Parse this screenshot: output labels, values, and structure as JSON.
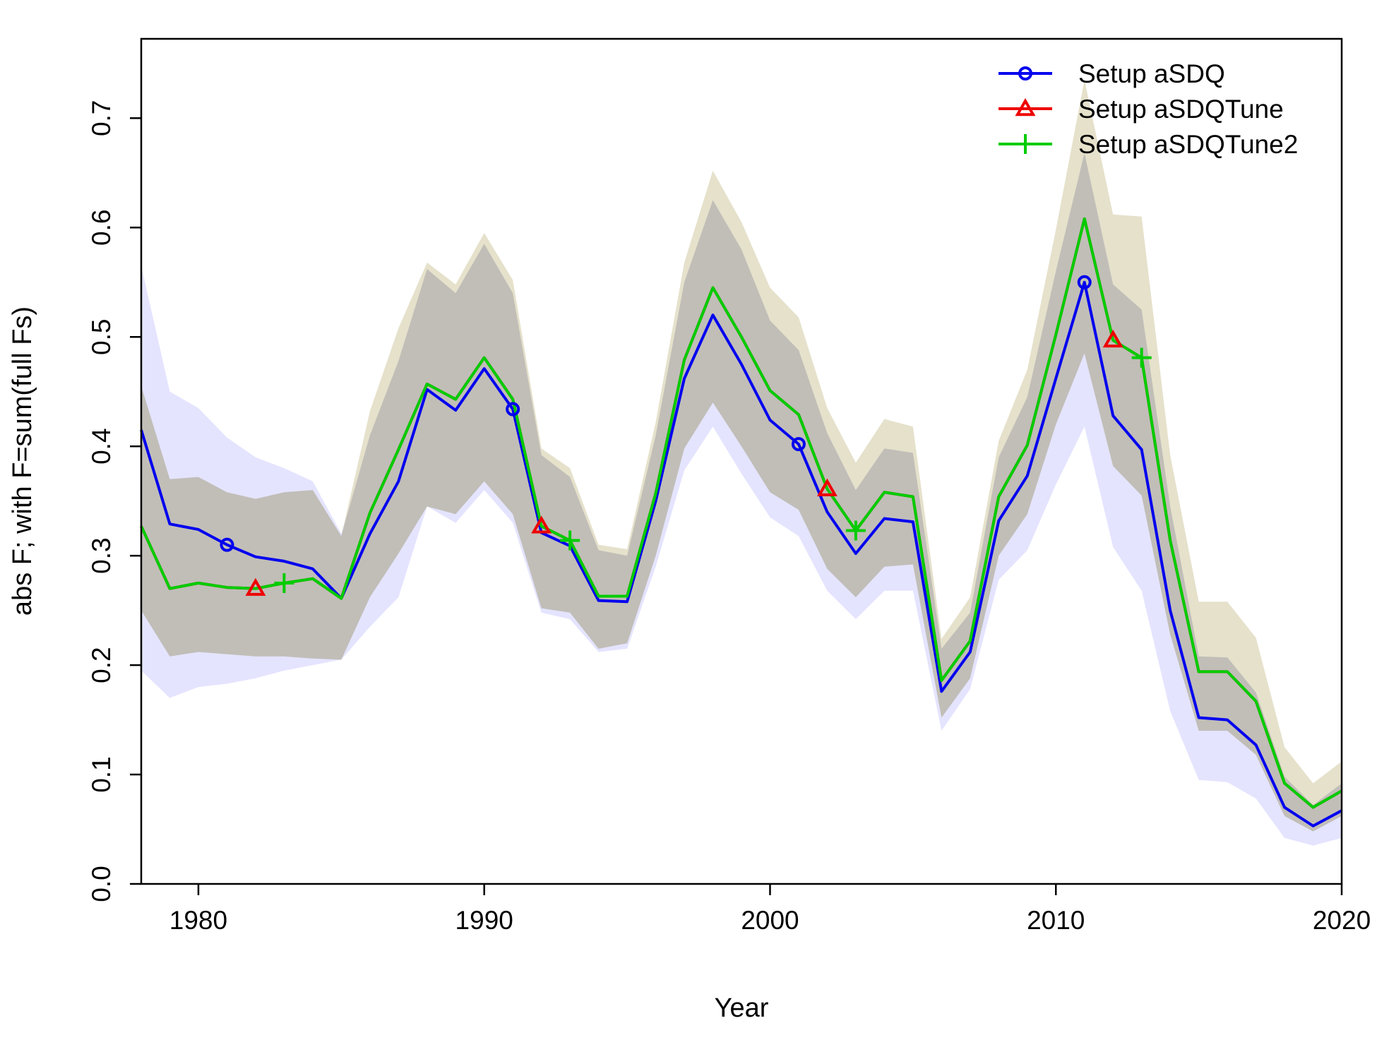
{
  "chart_data": {
    "type": "line",
    "xlabel": "Year",
    "ylabel": "abs F; with F=sum(full Fs)",
    "xlim": [
      1978,
      2020
    ],
    "ylim": [
      0,
      0.75
    ],
    "xticks": [
      1980,
      1990,
      2000,
      2010,
      2020
    ],
    "yticks": [
      0.0,
      0.1,
      0.2,
      0.3,
      0.4,
      0.5,
      0.6,
      0.7
    ],
    "ytick_labels": [
      "0.0",
      "0.1",
      "0.2",
      "0.3",
      "0.4",
      "0.5",
      "0.6",
      "0.7"
    ],
    "legend_position": "top-right",
    "x": [
      1978,
      1979,
      1980,
      1981,
      1982,
      1983,
      1984,
      1985,
      1986,
      1987,
      1988,
      1989,
      1990,
      1991,
      1992,
      1993,
      1994,
      1995,
      1996,
      1997,
      1998,
      1999,
      2000,
      2001,
      2002,
      2003,
      2004,
      2005,
      2006,
      2007,
      2008,
      2009,
      2010,
      2011,
      2012,
      2013,
      2014,
      2015,
      2016,
      2017,
      2018,
      2019,
      2020
    ],
    "series": [
      {
        "name": "Setup aSDQ",
        "color": "#0000ee",
        "marker": "circle",
        "marker_years": [
          1981,
          1991,
          2001,
          2011
        ],
        "values": [
          0.415,
          0.329,
          0.324,
          0.31,
          0.299,
          0.295,
          0.288,
          0.261,
          0.32,
          0.368,
          0.452,
          0.433,
          0.471,
          0.434,
          0.321,
          0.309,
          0.259,
          0.258,
          0.35,
          0.462,
          0.52,
          0.475,
          0.424,
          0.402,
          0.34,
          0.302,
          0.334,
          0.331,
          0.176,
          0.212,
          0.332,
          0.373,
          0.462,
          0.55,
          0.428,
          0.397,
          0.25,
          0.152,
          0.15,
          0.127,
          0.07,
          0.053,
          0.067
        ],
        "band_lower": [
          0.195,
          0.17,
          0.18,
          0.183,
          0.188,
          0.195,
          0.2,
          0.205,
          0.235,
          0.262,
          0.345,
          0.33,
          0.36,
          0.33,
          0.248,
          0.242,
          0.212,
          0.215,
          0.29,
          0.378,
          0.418,
          0.375,
          0.335,
          0.318,
          0.268,
          0.242,
          0.268,
          0.268,
          0.14,
          0.178,
          0.278,
          0.305,
          0.365,
          0.418,
          0.308,
          0.268,
          0.158,
          0.095,
          0.093,
          0.078,
          0.042,
          0.035,
          0.042
        ],
        "band_upper": [
          0.565,
          0.45,
          0.435,
          0.408,
          0.39,
          0.38,
          0.368,
          0.32,
          0.41,
          0.478,
          0.562,
          0.54,
          0.585,
          0.54,
          0.392,
          0.372,
          0.305,
          0.3,
          0.41,
          0.55,
          0.625,
          0.58,
          0.515,
          0.488,
          0.412,
          0.36,
          0.398,
          0.394,
          0.215,
          0.248,
          0.39,
          0.445,
          0.56,
          0.668,
          0.548,
          0.525,
          0.345,
          0.208,
          0.207,
          0.175,
          0.098,
          0.072,
          0.092
        ]
      },
      {
        "name": "Setup aSDQTune",
        "color": "#ee0000",
        "marker": "triangle",
        "marker_years": [
          1982,
          1992,
          2002,
          2012
        ],
        "values": [
          0.327,
          0.27,
          0.275,
          0.271,
          0.27,
          0.275,
          0.279,
          0.261,
          0.339,
          0.397,
          0.457,
          0.443,
          0.481,
          0.443,
          0.327,
          0.314,
          0.263,
          0.263,
          0.357,
          0.479,
          0.545,
          0.5,
          0.451,
          0.429,
          0.361,
          0.323,
          0.358,
          0.354,
          0.186,
          0.222,
          0.354,
          0.401,
          0.502,
          0.608,
          0.497,
          0.481,
          0.314,
          0.194,
          0.194,
          0.167,
          0.092,
          0.07,
          0.085
        ],
        "band_lower": [
          0.25,
          0.208,
          0.212,
          0.21,
          0.208,
          0.208,
          0.206,
          0.205,
          0.262,
          0.302,
          0.345,
          0.338,
          0.368,
          0.338,
          0.252,
          0.248,
          0.215,
          0.22,
          0.3,
          0.398,
          0.44,
          0.4,
          0.358,
          0.342,
          0.288,
          0.262,
          0.29,
          0.292,
          0.152,
          0.188,
          0.3,
          0.338,
          0.42,
          0.485,
          0.382,
          0.355,
          0.228,
          0.14,
          0.14,
          0.118,
          0.062,
          0.048,
          0.062
        ],
        "band_upper": [
          0.455,
          0.37,
          0.372,
          0.358,
          0.352,
          0.358,
          0.36,
          0.318,
          0.432,
          0.508,
          0.568,
          0.548,
          0.595,
          0.552,
          0.398,
          0.38,
          0.31,
          0.306,
          0.422,
          0.568,
          0.652,
          0.605,
          0.545,
          0.518,
          0.435,
          0.385,
          0.425,
          0.418,
          0.224,
          0.262,
          0.405,
          0.47,
          0.598,
          0.735,
          0.612,
          0.61,
          0.392,
          0.258,
          0.258,
          0.225,
          0.125,
          0.092,
          0.112
        ]
      },
      {
        "name": "Setup aSDQTune2",
        "color": "#00cc00",
        "marker": "plus",
        "marker_years": [
          1983,
          1993,
          2003,
          2013
        ],
        "values": [
          0.327,
          0.27,
          0.275,
          0.271,
          0.27,
          0.275,
          0.279,
          0.261,
          0.339,
          0.397,
          0.457,
          0.443,
          0.481,
          0.443,
          0.327,
          0.314,
          0.263,
          0.263,
          0.357,
          0.479,
          0.545,
          0.5,
          0.451,
          0.429,
          0.361,
          0.323,
          0.358,
          0.354,
          0.186,
          0.222,
          0.354,
          0.401,
          0.502,
          0.608,
          0.497,
          0.481,
          0.314,
          0.194,
          0.194,
          0.167,
          0.092,
          0.07,
          0.085
        ]
      }
    ]
  }
}
